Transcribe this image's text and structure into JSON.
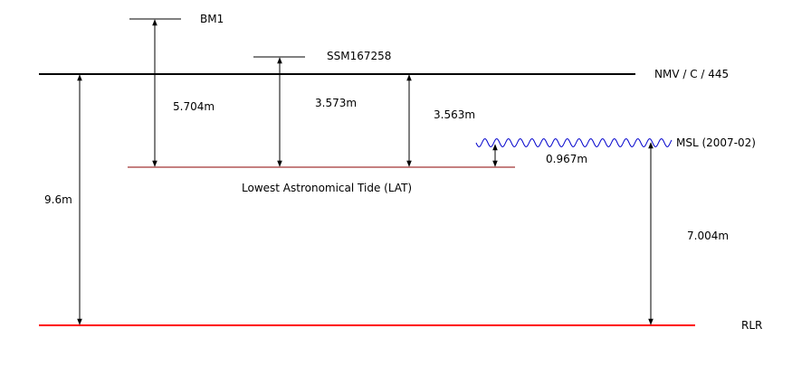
{
  "labels": {
    "bm1": "BM1",
    "ssm": "SSM167258",
    "nmv": "NMV / C / 445",
    "msl": "MSL (2007-02)",
    "lat": "Lowest Astronomical Tide (LAT)",
    "rlr": "RLR"
  },
  "measurements": {
    "bm1_to_lat": "5.704m",
    "ssm_to_lat": "3.573m",
    "nmv_to_lat": "3.563m",
    "msl_to_lat": "0.967m",
    "nmv_to_rlr": "9.6m",
    "msl_to_rlr": "7.004m"
  },
  "colors": {
    "line": "#000000",
    "lat_line": "#8b0000",
    "rlr_line": "#ff0000",
    "msl_wave": "#0000cc"
  }
}
